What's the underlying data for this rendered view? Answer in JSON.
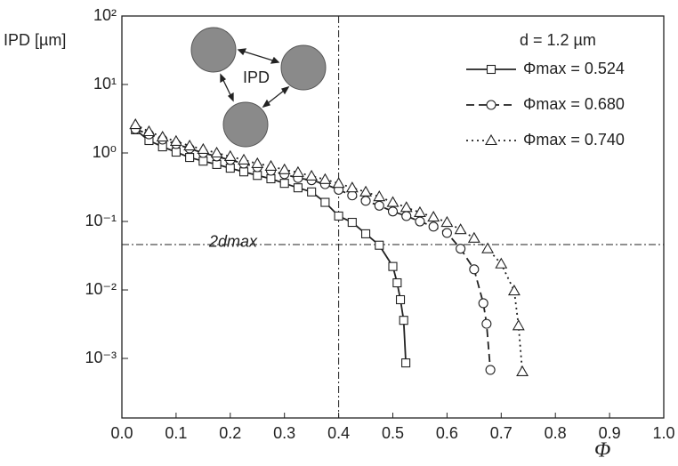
{
  "chart_data": {
    "type": "line",
    "y_label": "IPD [µm]",
    "x_label": "Φ",
    "y_scale": "log",
    "xlim": [
      0,
      1
    ],
    "ylim": [
      0.000135,
      100
    ],
    "xticks": [
      {
        "value": 0,
        "label": "0.0"
      },
      0.1,
      0.2,
      0.3,
      0.4,
      0.5,
      0.6,
      0.7,
      0.8,
      0.9,
      {
        "value": 1,
        "label": "1.0"
      }
    ],
    "yticks": [
      {
        "value": 0.001,
        "label": "10⁻³"
      },
      {
        "value": 0.01,
        "label": "10⁻²"
      },
      {
        "value": 0.1,
        "label": "10⁻¹"
      },
      {
        "value": 1,
        "label": "10⁰"
      },
      {
        "value": 10,
        "label": "10¹"
      },
      {
        "value": 100,
        "label": "10²"
      }
    ],
    "legend_title": "d = 1.2 µm",
    "inset_label": "IPD",
    "vline": 0.4,
    "hline": 0.046,
    "hline_label": "2dmax",
    "series": [
      {
        "name": "Φmax = 0.524",
        "color": "#222222",
        "marker": "square",
        "dash": "solid",
        "x": [
          0.025,
          0.05,
          0.075,
          0.1,
          0.125,
          0.15,
          0.175,
          0.2,
          0.225,
          0.25,
          0.275,
          0.3,
          0.325,
          0.35,
          0.375,
          0.4,
          0.425,
          0.45,
          0.475,
          0.5,
          0.508,
          0.514,
          0.52,
          0.524
        ],
        "values": [
          2.18,
          1.52,
          1.23,
          1.03,
          0.86,
          0.76,
          0.68,
          0.6,
          0.53,
          0.47,
          0.42,
          0.36,
          0.31,
          0.27,
          0.19,
          0.12,
          0.097,
          0.066,
          0.045,
          0.022,
          0.0127,
          0.0072,
          0.0036,
          0.00086
        ]
      },
      {
        "name": "Φmax = 0.680",
        "color": "#222222",
        "marker": "circle",
        "dash": "dashed",
        "x": [
          0.025,
          0.05,
          0.075,
          0.1,
          0.125,
          0.15,
          0.175,
          0.2,
          0.225,
          0.25,
          0.275,
          0.3,
          0.325,
          0.35,
          0.375,
          0.4,
          0.425,
          0.45,
          0.475,
          0.5,
          0.525,
          0.55,
          0.575,
          0.6,
          0.625,
          0.65,
          0.667,
          0.673,
          0.68
        ],
        "values": [
          2.24,
          1.87,
          1.57,
          1.35,
          1.16,
          1.0,
          0.89,
          0.79,
          0.7,
          0.62,
          0.55,
          0.49,
          0.43,
          0.4,
          0.35,
          0.29,
          0.24,
          0.2,
          0.17,
          0.14,
          0.12,
          0.1,
          0.084,
          0.068,
          0.04,
          0.02,
          0.0064,
          0.0032,
          0.00068
        ]
      },
      {
        "name": "Φmax = 0.740",
        "color": "#222222",
        "marker": "triangle",
        "dash": "dotted",
        "x": [
          0.025,
          0.05,
          0.075,
          0.1,
          0.125,
          0.15,
          0.175,
          0.2,
          0.225,
          0.25,
          0.275,
          0.3,
          0.325,
          0.35,
          0.375,
          0.4,
          0.425,
          0.45,
          0.475,
          0.5,
          0.525,
          0.55,
          0.575,
          0.6,
          0.625,
          0.65,
          0.675,
          0.7,
          0.724,
          0.732,
          0.739
        ],
        "values": [
          2.6,
          2.05,
          1.71,
          1.48,
          1.27,
          1.13,
          1.0,
          0.89,
          0.79,
          0.7,
          0.64,
          0.57,
          0.52,
          0.46,
          0.41,
          0.36,
          0.31,
          0.27,
          0.23,
          0.19,
          0.16,
          0.135,
          0.116,
          0.097,
          0.076,
          0.057,
          0.04,
          0.024,
          0.0097,
          0.003,
          0.00064
        ]
      }
    ]
  }
}
